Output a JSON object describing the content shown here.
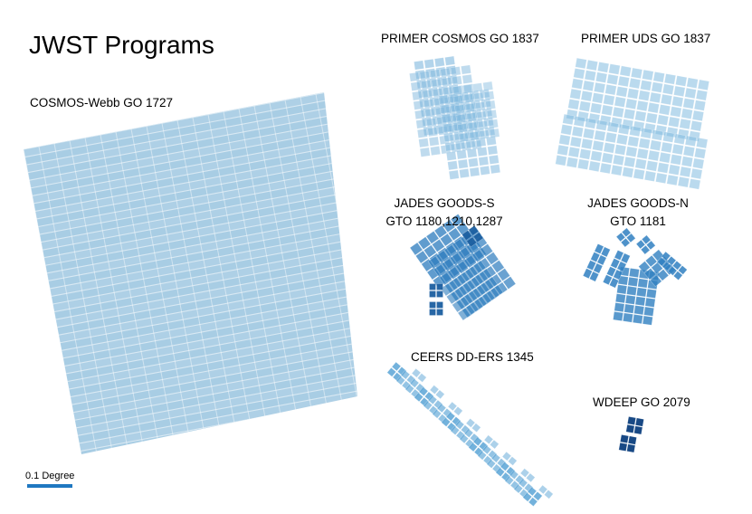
{
  "title": "JWST Programs",
  "scale_label": "0.1 Degree",
  "fields": [
    {
      "id": "cosmos-webb",
      "lines": [
        "COSMOS-Webb GO 1727"
      ],
      "color": "#a8cde4"
    },
    {
      "id": "primer-cosmos",
      "lines": [
        "PRIMER COSMOS GO 1837"
      ],
      "color": "#7fb8de"
    },
    {
      "id": "primer-uds",
      "lines": [
        "PRIMER UDS GO 1837"
      ],
      "color": "#82bbe0"
    },
    {
      "id": "jades-goods-s",
      "lines": [
        "JADES GOODS-S",
        "GTO 1180,1210,1287"
      ],
      "color": "#2b7bbd"
    },
    {
      "id": "jades-goods-n",
      "lines": [
        "JADES GOODS-N",
        "GTO 1181"
      ],
      "color": "#2f7fc1"
    },
    {
      "id": "ceers",
      "lines": [
        "CEERS DD-ERS 1345"
      ],
      "color": "#5aa4d6"
    },
    {
      "id": "wdeep",
      "lines": [
        "WDEEP GO 2079"
      ],
      "color": "#0c3f7e"
    }
  ],
  "scale_bar_color": "#1f78c1"
}
